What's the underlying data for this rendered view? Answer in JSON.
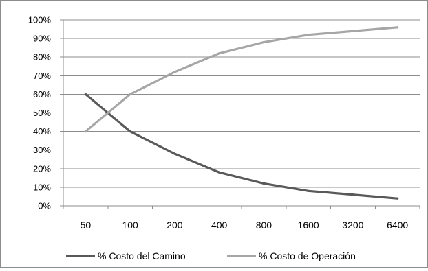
{
  "chart_data": {
    "type": "line",
    "categories": [
      "50",
      "100",
      "200",
      "400",
      "800",
      "1600",
      "3200",
      "6400"
    ],
    "y_ticks": [
      "0%",
      "10%",
      "20%",
      "30%",
      "40%",
      "50%",
      "60%",
      "70%",
      "80%",
      "90%",
      "100%"
    ],
    "ylim": [
      0,
      100
    ],
    "y_unit": "%",
    "grid": true,
    "legend_position": "bottom",
    "series": [
      {
        "name": "% Costo del Camino",
        "color": "#595959",
        "values": [
          60,
          40,
          28,
          18,
          12,
          8,
          6,
          4
        ]
      },
      {
        "name": "% Costo de Operación",
        "color": "#a6a6a6",
        "values": [
          40,
          60,
          72,
          82,
          88,
          92,
          94,
          96
        ]
      }
    ]
  }
}
